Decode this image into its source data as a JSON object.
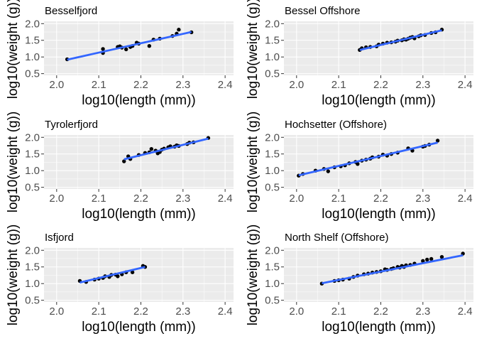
{
  "colors": {
    "panel_bg": "#ebebeb",
    "grid_major": "#ffffff",
    "points": "#000000",
    "fit_line": "#3366ff",
    "tick_text": "#4d4d4d"
  },
  "chart_data": [
    {
      "type": "scatter",
      "title": "Besselfjord",
      "xlabel": "log10(length (mm))",
      "ylabel": "log10(weight (g))",
      "xlim": [
        1.97,
        2.42
      ],
      "ylim": [
        0.45,
        2.07
      ],
      "x_ticks": [
        "2.0",
        "2.1",
        "2.2",
        "2.3",
        "2.4"
      ],
      "y_ticks": [
        "0.5",
        "1.0",
        "1.5",
        "2.0"
      ],
      "grid": true,
      "points": [
        [
          2.025,
          0.93
        ],
        [
          2.11,
          1.12
        ],
        [
          2.11,
          1.24
        ],
        [
          2.145,
          1.3
        ],
        [
          2.15,
          1.32
        ],
        [
          2.155,
          1.28
        ],
        [
          2.165,
          1.23
        ],
        [
          2.175,
          1.3
        ],
        [
          2.18,
          1.33
        ],
        [
          2.19,
          1.43
        ],
        [
          2.195,
          1.4
        ],
        [
          2.22,
          1.33
        ],
        [
          2.23,
          1.52
        ],
        [
          2.245,
          1.55
        ],
        [
          2.275,
          1.63
        ],
        [
          2.285,
          1.7
        ],
        [
          2.29,
          1.82
        ],
        [
          2.32,
          1.74
        ]
      ],
      "fit": {
        "x": [
          2.025,
          2.32
        ],
        "y": [
          0.92,
          1.75
        ]
      }
    },
    {
      "type": "scatter",
      "title": "Bessel Offshore",
      "xlabel": "log10(length (mm))",
      "ylabel": "log10(weight (g))",
      "xlim": [
        1.97,
        2.42
      ],
      "ylim": [
        0.45,
        2.07
      ],
      "x_ticks": [
        "2.0",
        "2.1",
        "2.2",
        "2.3",
        "2.4"
      ],
      "y_ticks": [
        "0.5",
        "1.0",
        "1.5",
        "2.0"
      ],
      "grid": true,
      "points": [
        [
          2.15,
          1.21
        ],
        [
          2.155,
          1.26
        ],
        [
          2.165,
          1.29
        ],
        [
          2.175,
          1.3
        ],
        [
          2.19,
          1.32
        ],
        [
          2.195,
          1.37
        ],
        [
          2.205,
          1.4
        ],
        [
          2.215,
          1.43
        ],
        [
          2.225,
          1.44
        ],
        [
          2.235,
          1.46
        ],
        [
          2.24,
          1.49
        ],
        [
          2.25,
          1.5
        ],
        [
          2.255,
          1.53
        ],
        [
          2.26,
          1.52
        ],
        [
          2.265,
          1.55
        ],
        [
          2.27,
          1.58
        ],
        [
          2.275,
          1.6
        ],
        [
          2.28,
          1.56
        ],
        [
          2.29,
          1.62
        ],
        [
          2.295,
          1.65
        ],
        [
          2.305,
          1.66
        ],
        [
          2.32,
          1.72
        ],
        [
          2.33,
          1.74
        ],
        [
          2.345,
          1.82
        ]
      ],
      "fit": {
        "x": [
          2.15,
          2.345
        ],
        "y": [
          1.21,
          1.8
        ]
      }
    },
    {
      "type": "scatter",
      "title": "Tyrolerfjord",
      "xlabel": "log10(length (mm))",
      "ylabel": "log10(weight (g))",
      "xlim": [
        1.97,
        2.42
      ],
      "ylim": [
        0.45,
        2.07
      ],
      "x_ticks": [
        "2.0",
        "2.1",
        "2.2",
        "2.3",
        "2.4"
      ],
      "y_ticks": [
        "0.5",
        "1.0",
        "1.5",
        "2.0"
      ],
      "grid": true,
      "points": [
        [
          2.16,
          1.28
        ],
        [
          2.17,
          1.43
        ],
        [
          2.175,
          1.35
        ],
        [
          2.195,
          1.47
        ],
        [
          2.21,
          1.53
        ],
        [
          2.22,
          1.55
        ],
        [
          2.225,
          1.65
        ],
        [
          2.235,
          1.6
        ],
        [
          2.24,
          1.52
        ],
        [
          2.245,
          1.56
        ],
        [
          2.25,
          1.63
        ],
        [
          2.255,
          1.66
        ],
        [
          2.265,
          1.7
        ],
        [
          2.27,
          1.73
        ],
        [
          2.28,
          1.72
        ],
        [
          2.285,
          1.76
        ],
        [
          2.29,
          1.74
        ],
        [
          2.31,
          1.8
        ],
        [
          2.315,
          1.84
        ],
        [
          2.325,
          1.85
        ],
        [
          2.36,
          1.98
        ]
      ],
      "fit": {
        "x": [
          2.16,
          2.36
        ],
        "y": [
          1.34,
          1.96
        ]
      }
    },
    {
      "type": "scatter",
      "title": "Hochsetter (Offshore)",
      "xlabel": "log10(length (mm))",
      "ylabel": "log10(weight (g))",
      "xlim": [
        1.97,
        2.42
      ],
      "ylim": [
        0.45,
        2.07
      ],
      "x_ticks": [
        "2.0",
        "2.1",
        "2.2",
        "2.3",
        "2.4"
      ],
      "y_ticks": [
        "0.5",
        "1.0",
        "1.5",
        "2.0"
      ],
      "grid": true,
      "points": [
        [
          2.005,
          0.85
        ],
        [
          2.015,
          0.9
        ],
        [
          2.045,
          1.0
        ],
        [
          2.065,
          1.05
        ],
        [
          2.075,
          0.98
        ],
        [
          2.09,
          1.1
        ],
        [
          2.105,
          1.13
        ],
        [
          2.115,
          1.16
        ],
        [
          2.125,
          1.22
        ],
        [
          2.14,
          1.26
        ],
        [
          2.145,
          1.2
        ],
        [
          2.155,
          1.3
        ],
        [
          2.165,
          1.33
        ],
        [
          2.175,
          1.36
        ],
        [
          2.18,
          1.4
        ],
        [
          2.195,
          1.42
        ],
        [
          2.205,
          1.48
        ],
        [
          2.215,
          1.45
        ],
        [
          2.225,
          1.5
        ],
        [
          2.24,
          1.54
        ],
        [
          2.265,
          1.67
        ],
        [
          2.275,
          1.6
        ],
        [
          2.3,
          1.72
        ],
        [
          2.305,
          1.74
        ],
        [
          2.315,
          1.78
        ],
        [
          2.335,
          1.9
        ]
      ],
      "fit": {
        "x": [
          2.005,
          2.335
        ],
        "y": [
          0.86,
          1.84
        ]
      }
    },
    {
      "type": "scatter",
      "title": "Isfjord",
      "xlabel": "log10(length (mm))",
      "ylabel": "log10(weight (g))",
      "xlim": [
        1.97,
        2.42
      ],
      "ylim": [
        0.45,
        2.07
      ],
      "x_ticks": [
        "2.0",
        "2.1",
        "2.2",
        "2.3",
        "2.4"
      ],
      "y_ticks": [
        "0.5",
        "1.0",
        "1.5",
        "2.0"
      ],
      "grid": true,
      "points": [
        [
          2.055,
          1.08
        ],
        [
          2.07,
          1.05
        ],
        [
          2.09,
          1.12
        ],
        [
          2.1,
          1.15
        ],
        [
          2.11,
          1.17
        ],
        [
          2.115,
          1.22
        ],
        [
          2.125,
          1.2
        ],
        [
          2.13,
          1.26
        ],
        [
          2.14,
          1.27
        ],
        [
          2.145,
          1.22
        ],
        [
          2.155,
          1.28
        ],
        [
          2.165,
          1.34
        ],
        [
          2.18,
          1.34
        ],
        [
          2.205,
          1.53
        ],
        [
          2.21,
          1.5
        ]
      ],
      "fit": {
        "x": [
          2.055,
          2.21
        ],
        "y": [
          1.03,
          1.5
        ]
      }
    },
    {
      "type": "scatter",
      "title": "North Shelf (Offshore)",
      "xlabel": "log10(length (mm))",
      "ylabel": "log10(weight (g))",
      "xlim": [
        1.97,
        2.42
      ],
      "ylim": [
        0.45,
        2.07
      ],
      "x_ticks": [
        "2.0",
        "2.1",
        "2.2",
        "2.3",
        "2.4"
      ],
      "y_ticks": [
        "0.5",
        "1.0",
        "1.5",
        "2.0"
      ],
      "grid": true,
      "points": [
        [
          2.06,
          1.0
        ],
        [
          2.09,
          1.08
        ],
        [
          2.1,
          1.1
        ],
        [
          2.11,
          1.12
        ],
        [
          2.125,
          1.15
        ],
        [
          2.135,
          1.2
        ],
        [
          2.145,
          1.24
        ],
        [
          2.16,
          1.28
        ],
        [
          2.17,
          1.3
        ],
        [
          2.18,
          1.33
        ],
        [
          2.19,
          1.35
        ],
        [
          2.2,
          1.37
        ],
        [
          2.21,
          1.43
        ],
        [
          2.215,
          1.41
        ],
        [
          2.225,
          1.44
        ],
        [
          2.23,
          1.46
        ],
        [
          2.24,
          1.5
        ],
        [
          2.245,
          1.48
        ],
        [
          2.25,
          1.53
        ],
        [
          2.255,
          1.5
        ],
        [
          2.26,
          1.55
        ],
        [
          2.27,
          1.56
        ],
        [
          2.28,
          1.6
        ],
        [
          2.3,
          1.68
        ],
        [
          2.31,
          1.72
        ],
        [
          2.32,
          1.74
        ],
        [
          2.345,
          1.8
        ],
        [
          2.395,
          1.9
        ]
      ],
      "fit": {
        "x": [
          2.06,
          2.395
        ],
        "y": [
          1.01,
          1.85
        ]
      }
    }
  ]
}
